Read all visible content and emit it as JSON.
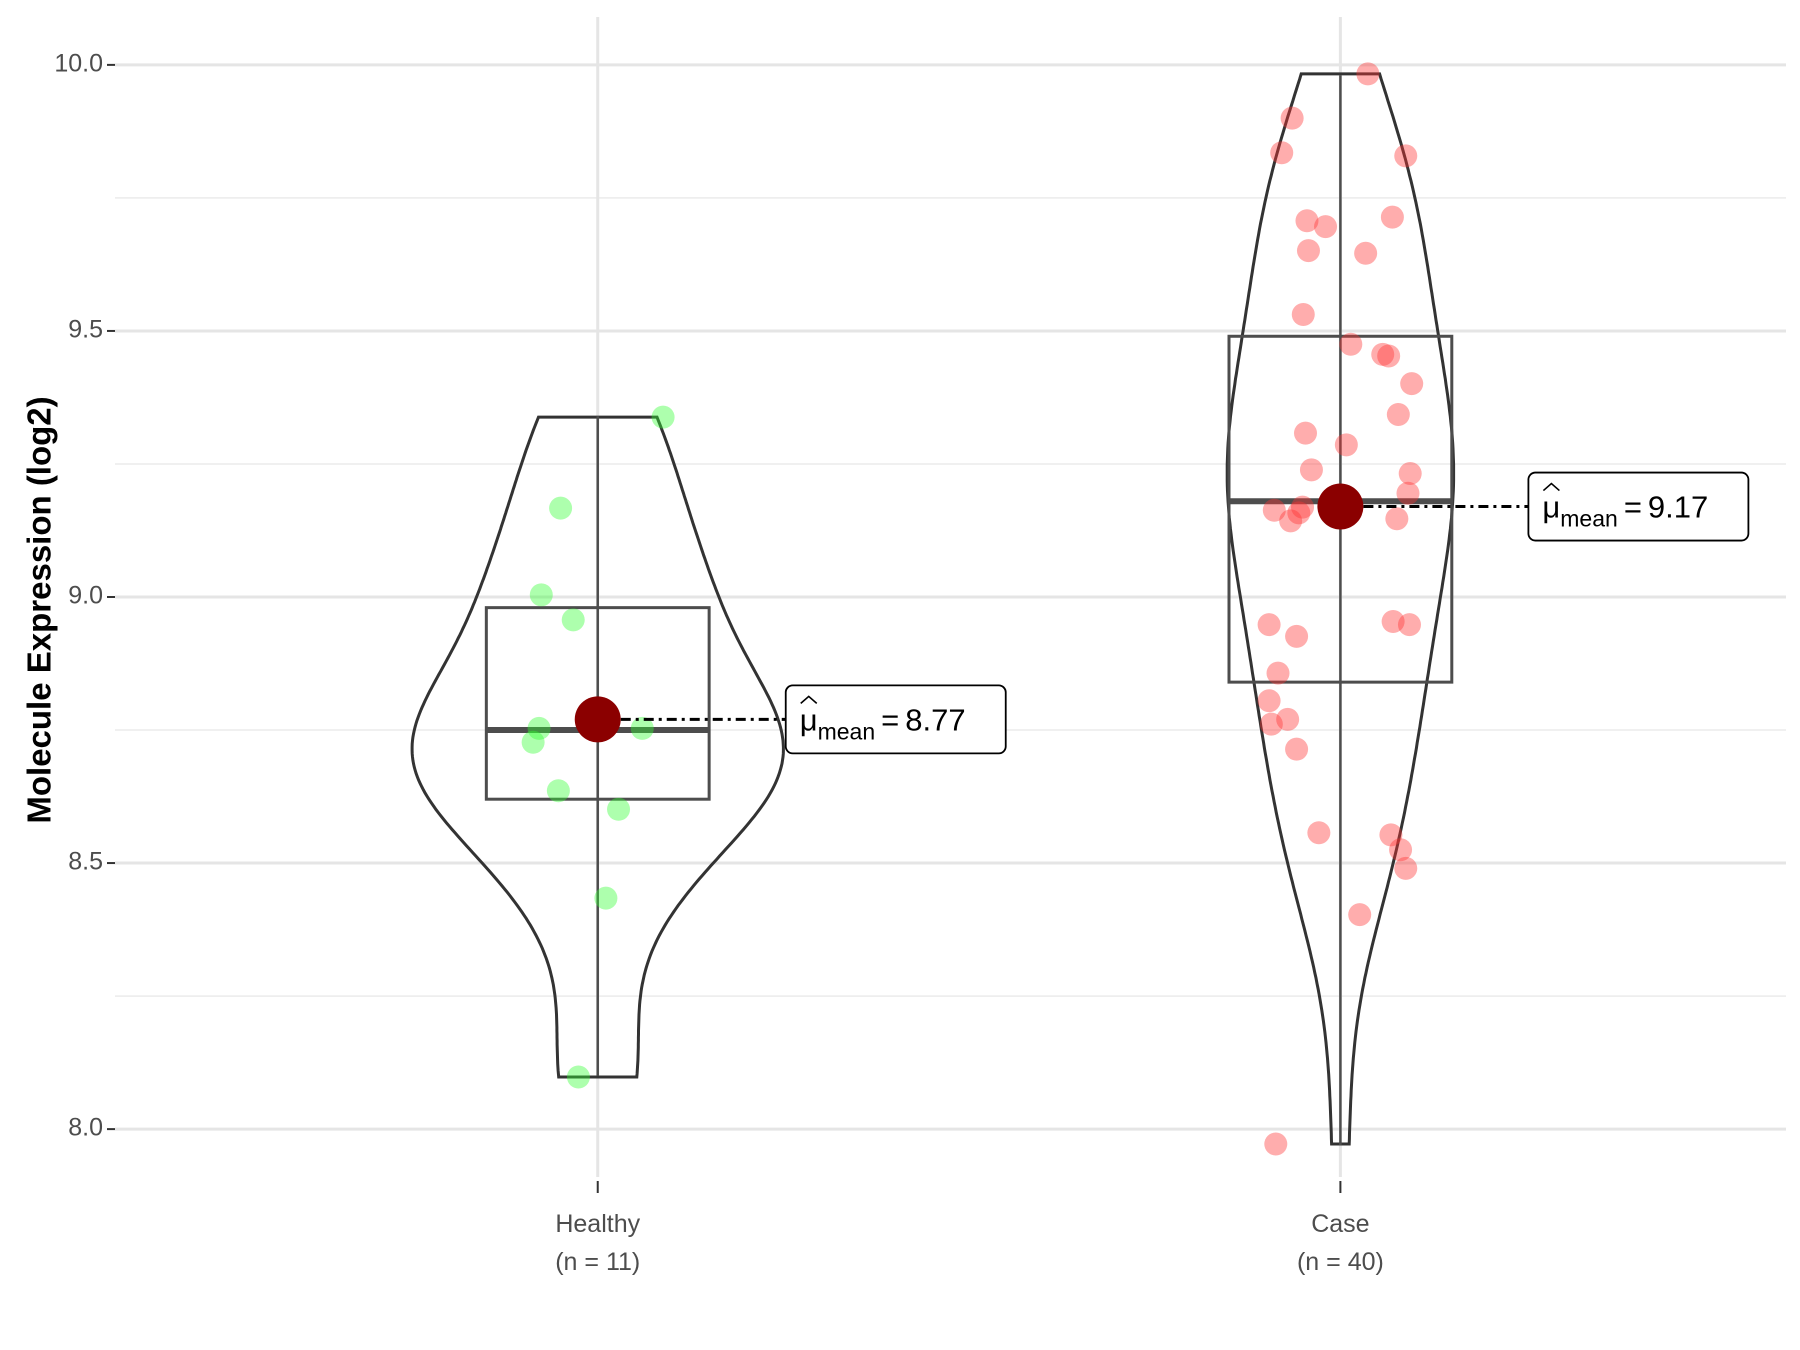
{
  "chart_data": {
    "type": "violin",
    "y_label": "Molecule Expression (log2)",
    "ylim": [
      7.91,
      10.09
    ],
    "yticks": [
      {
        "value": 8,
        "label": "8.0"
      },
      8.5,
      {
        "value": 9,
        "label": "9.0"
      },
      9.5,
      {
        "value": 10,
        "label": "10.0"
      }
    ],
    "minor_yticks": [
      8.25,
      8.75,
      9.25,
      9.75
    ],
    "grid": true,
    "mean_symbol": "μ",
    "mean_subscript": "mean",
    "mean_equals": "=",
    "mean_color": "#8b0000",
    "groups": [
      {
        "name": "Healthy",
        "n_label": "(n = 11)",
        "color": "#33ff33",
        "values": [
          9.338,
          9.167,
          9.004,
          8.957,
          8.753,
          8.753,
          8.727,
          8.636,
          8.601,
          8.434,
          8.098
        ],
        "q1": 8.62,
        "median": 8.75,
        "q3": 8.98,
        "whisker_low": 8.1,
        "whisker_high": 9.34,
        "mean": 8.77
      },
      {
        "name": "Case",
        "n_label": "(n = 40)",
        "color": "#ff3333",
        "values": [
          9.983,
          9.9,
          9.835,
          9.829,
          9.714,
          9.707,
          9.696,
          9.651,
          9.646,
          9.531,
          9.475,
          9.456,
          9.453,
          9.401,
          9.343,
          9.308,
          9.286,
          9.239,
          9.232,
          9.195,
          9.169,
          9.163,
          9.158,
          9.143,
          9.147,
          8.948,
          8.954,
          8.948,
          8.926,
          8.857,
          8.805,
          8.761,
          8.77,
          8.714,
          8.557,
          8.553,
          8.525,
          8.49,
          8.403,
          7.972
        ],
        "q1": 8.84,
        "median": 9.18,
        "q3": 9.49,
        "whisker_low": 7.97,
        "whisker_high": 9.98,
        "mean": 9.17
      }
    ]
  }
}
